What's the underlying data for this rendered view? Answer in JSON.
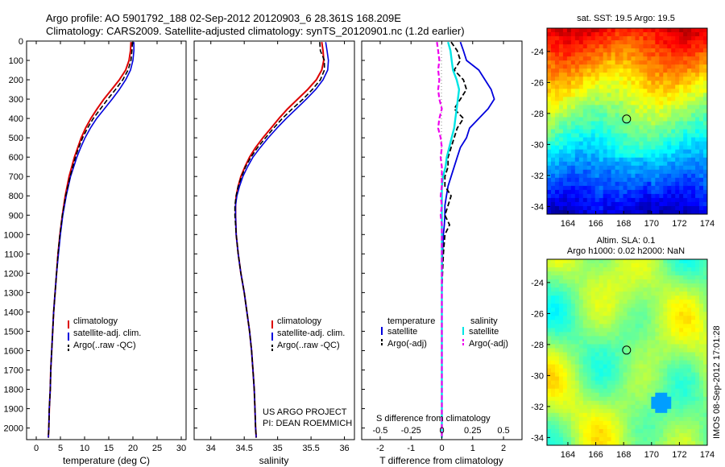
{
  "titles": {
    "line1": "Argo profile: AO 5901792_188 02-Sep-2012 20120903_6 28.361S 168.209E",
    "line2": "Climatology: CARS2009. Satellite-adjusted climatology: synTS_20120901.nc (1.2d earlier)"
  },
  "colors": {
    "clim": "#dd0000",
    "sat": "#0000dd",
    "argo": "#000000",
    "sat_s": "#00e5e5",
    "argo_s": "#ee00ee"
  },
  "chart_data": [
    {
      "type": "line",
      "id": "temperature",
      "xlabel": "temperature (deg C)",
      "xlim": [
        -2,
        31
      ],
      "ylim": [
        2060,
        0
      ],
      "xticks": [
        0,
        5,
        10,
        15,
        20,
        25,
        30
      ],
      "yticks": [
        0,
        100,
        200,
        300,
        400,
        500,
        600,
        700,
        800,
        900,
        1000,
        1100,
        1200,
        1300,
        1400,
        1500,
        1600,
        1700,
        1800,
        1900,
        2000
      ],
      "legend": [
        "climatology",
        "satellite-adj. clim.",
        "Argo(..raw -QC)"
      ],
      "depth": [
        5,
        50,
        100,
        150,
        200,
        250,
        300,
        350,
        400,
        450,
        500,
        550,
        600,
        700,
        800,
        900,
        1000,
        1100,
        1200,
        1300,
        1400,
        1500,
        1600,
        1700,
        1800,
        1900,
        2000,
        2050
      ],
      "series": [
        {
          "name": "climatology",
          "values": [
            19.6,
            19.5,
            19.2,
            18.5,
            17.2,
            15.6,
            14.0,
            12.6,
            11.3,
            10.2,
            9.3,
            8.6,
            7.9,
            6.8,
            6.0,
            5.4,
            4.9,
            4.5,
            4.2,
            3.9,
            3.6,
            3.4,
            3.2,
            3.0,
            2.9,
            2.7,
            2.6,
            2.5
          ]
        },
        {
          "name": "satellite-adj. clim.",
          "values": [
            20.2,
            20.2,
            20.0,
            19.5,
            18.5,
            17.2,
            15.7,
            14.1,
            12.5,
            11.2,
            10.1,
            9.2,
            8.4,
            7.1,
            6.2,
            5.5,
            5.0,
            4.6,
            4.2,
            3.9,
            3.6,
            3.4,
            3.2,
            3.0,
            2.9,
            2.7,
            2.6,
            2.5
          ]
        },
        {
          "name": "Argo(..raw -QC)",
          "values": [
            19.9,
            19.8,
            19.6,
            19.0,
            17.9,
            16.4,
            14.8,
            13.3,
            11.8,
            10.6,
            9.6,
            8.8,
            8.1,
            7.0,
            6.1,
            5.4,
            4.9,
            4.5,
            4.2,
            3.9,
            3.6,
            3.4,
            3.2,
            3.0,
            2.9,
            2.7,
            2.6,
            2.5
          ]
        }
      ]
    },
    {
      "type": "line",
      "id": "salinity",
      "xlabel": "salinity",
      "xlim": [
        33.75,
        36.15
      ],
      "ylim": [
        2060,
        0
      ],
      "xticks": [
        34,
        34.5,
        35,
        35.5,
        36
      ],
      "xticklabels": [
        "34",
        "34.5",
        "35",
        "35.5",
        "36"
      ],
      "legend": [
        "climatology",
        "satellite-adj. clim.",
        "Argo(..raw -QC)"
      ],
      "annotation": [
        "US ARGO PROJECT",
        "PI: DEAN ROEMMICH"
      ],
      "depth": [
        5,
        50,
        100,
        150,
        200,
        250,
        300,
        350,
        400,
        450,
        500,
        550,
        600,
        650,
        700,
        750,
        800,
        850,
        900,
        1000,
        1100,
        1200,
        1300,
        1400,
        1500,
        1600,
        1700,
        1800,
        1900,
        2000,
        2050
      ],
      "series": [
        {
          "name": "climatology",
          "values": [
            35.66,
            35.68,
            35.69,
            35.66,
            35.58,
            35.45,
            35.3,
            35.15,
            35.02,
            34.9,
            34.78,
            34.67,
            34.58,
            34.51,
            34.45,
            34.41,
            34.38,
            34.37,
            34.37,
            34.38,
            34.41,
            34.45,
            34.5,
            34.54,
            34.58,
            34.61,
            34.63,
            34.65,
            34.66,
            34.67,
            34.68
          ]
        },
        {
          "name": "satellite-adj. clim.",
          "values": [
            35.72,
            35.74,
            35.76,
            35.75,
            35.68,
            35.57,
            35.43,
            35.28,
            35.13,
            34.99,
            34.86,
            34.74,
            34.63,
            34.55,
            34.48,
            34.43,
            34.39,
            34.37,
            34.37,
            34.38,
            34.41,
            34.45,
            34.5,
            34.54,
            34.58,
            34.61,
            34.63,
            34.65,
            34.66,
            34.67,
            34.68
          ]
        },
        {
          "name": "Argo(..raw -QC)",
          "values": [
            35.63,
            35.64,
            35.7,
            35.7,
            35.64,
            35.52,
            35.38,
            35.22,
            35.07,
            34.94,
            34.82,
            34.7,
            34.6,
            34.52,
            34.46,
            34.41,
            34.38,
            34.36,
            34.36,
            34.38,
            34.41,
            34.45,
            34.5,
            34.54,
            34.58,
            34.61,
            34.63,
            34.65,
            34.66,
            34.67,
            34.68
          ]
        }
      ]
    },
    {
      "type": "line",
      "id": "difference",
      "xlabel": "T difference from climatology",
      "xlabel_top": "S difference from climatology",
      "xlim": [
        -2.6,
        2.6
      ],
      "ylim": [
        2060,
        0
      ],
      "xticks": [
        -2,
        -1,
        0,
        1,
        2
      ],
      "s_xticks": [
        -0.5,
        -0.25,
        0,
        0.25,
        0.5
      ],
      "s_xticklabels": [
        "-0.5",
        "-0.25",
        "0",
        "0.25",
        "0.5"
      ],
      "legend_headers": [
        "temperature",
        "salinity"
      ],
      "legend": [
        "satellite",
        "Argo(-adj)",
        "satellite",
        "Argo(-adj)"
      ],
      "depth": [
        5,
        50,
        100,
        150,
        200,
        250,
        300,
        350,
        400,
        450,
        500,
        550,
        600,
        650,
        700,
        750,
        800,
        850,
        900,
        950,
        1000,
        1100,
        1200,
        1300,
        1400,
        1600,
        1800,
        2000,
        2050
      ],
      "series": [
        {
          "name": "temperature satellite",
          "values": [
            0.6,
            0.7,
            0.8,
            1.2,
            1.4,
            1.6,
            1.7,
            1.5,
            1.2,
            0.9,
            0.8,
            0.6,
            0.5,
            0.4,
            0.3,
            0.2,
            0.15,
            0.1,
            0.1,
            0.08,
            0.05,
            0.02,
            0.0,
            0.0,
            0.0,
            0.0,
            0.0,
            0.0,
            0.0
          ]
        },
        {
          "name": "temperature Argo(-adj)",
          "values": [
            0.3,
            0.5,
            0.6,
            0.4,
            0.7,
            0.8,
            0.6,
            0.4,
            0.7,
            0.5,
            0.4,
            0.3,
            0.2,
            0.2,
            0.1,
            0.1,
            0.3,
            0.2,
            0.1,
            0.25,
            0.1,
            0.05,
            0.02,
            0.0,
            0.0,
            0.0,
            0.0,
            0.0,
            0.0
          ]
        },
        {
          "name": "salinity satellite",
          "values": [
            0.05,
            0.07,
            0.08,
            0.09,
            0.12,
            0.14,
            0.13,
            0.12,
            0.11,
            0.1,
            0.08,
            0.06,
            0.04,
            0.03,
            0.01,
            0.0,
            0.0,
            0.0,
            0.0,
            0.0,
            0.0,
            0.0,
            0.0,
            0.0,
            0.0,
            0.0,
            0.0,
            0.0,
            0.0
          ]
        },
        {
          "name": "salinity Argo(-adj)",
          "values": [
            -0.04,
            -0.03,
            -0.02,
            -0.03,
            -0.02,
            -0.03,
            -0.02,
            0.0,
            -0.02,
            -0.03,
            -0.01,
            0.0,
            -0.01,
            0.0,
            0.0,
            0.0,
            -0.01,
            0.0,
            -0.01,
            0.0,
            0.0,
            0.0,
            0.0,
            0.0,
            0.0,
            0.0,
            0.0,
            0.0,
            0.0
          ]
        }
      ]
    },
    {
      "type": "heatmap",
      "id": "sst_map",
      "title": "sat. SST: 19.5 Argo: 19.5",
      "xlim": [
        162.5,
        174
      ],
      "ylim": [
        -34.5,
        -22.5
      ],
      "xticks": [
        164,
        166,
        168,
        170,
        172,
        174
      ],
      "yticks": [
        -24,
        -26,
        -28,
        -30,
        -32,
        -34
      ],
      "marker": {
        "lon": 168.21,
        "lat": -28.36
      }
    },
    {
      "type": "heatmap",
      "id": "sla_map",
      "title": [
        "Altim. SLA: 0.1",
        "Argo h1000: 0.02 h2000: NaN"
      ],
      "xlim": [
        162.5,
        174
      ],
      "ylim": [
        -34.5,
        -22.5
      ],
      "xticks": [
        164,
        166,
        168,
        170,
        172,
        174
      ],
      "yticks": [
        -24,
        -26,
        -28,
        -30,
        -32,
        -34
      ],
      "marker": {
        "lon": 168.21,
        "lat": -28.36
      }
    }
  ],
  "credit": "IMOS 08-Sep-2012 17:01:28"
}
